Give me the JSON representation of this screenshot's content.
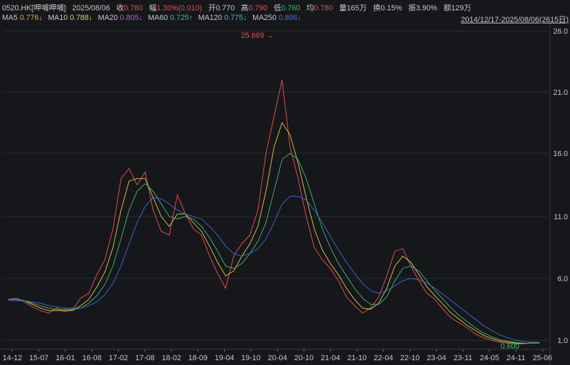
{
  "header": {
    "code": "0520.HK[呷哺呷哺]",
    "date": "2025/08/06",
    "close_label": "收",
    "close": "0.780",
    "change_label": "幅",
    "change": "1.30%(0.010)",
    "open_label": "开",
    "open": "0.770",
    "high_label": "高",
    "high": "0.790",
    "low_label": "低",
    "low": "0.760",
    "avg_label": "均",
    "avg": "0.780",
    "vol_label": "量",
    "vol": "165万",
    "turn_label": "换",
    "turn": "0.15%",
    "amp_label": "振",
    "amp": "3.90%",
    "amt_label": "额",
    "amt": "129万"
  },
  "ma_legend": [
    {
      "name": "MA5",
      "value": "0.776↓",
      "color": "#e8a035"
    },
    {
      "name": "MA10",
      "value": "0.788↓",
      "color": "#e8d24a"
    },
    {
      "name": "MA20",
      "value": "0.805↓",
      "color": "#c45ad8"
    },
    {
      "name": "MA60",
      "value": "0.725↑",
      "color": "#3ec27a"
    },
    {
      "name": "MA120",
      "value": "0.775↓",
      "color": "#3fb7e0"
    },
    {
      "name": "MA250",
      "value": "0.896↓",
      "color": "#3f6fe0"
    }
  ],
  "range_label": "2014/12/17-2025/08/06(2615日)",
  "chart_data": {
    "type": "line",
    "log_scale": true,
    "y_ticks": [
      "26.0",
      "21.0",
      "16.0",
      "11.0",
      "6.0",
      "1.0"
    ],
    "x_ticks": [
      "14-12",
      "15-07",
      "16-01",
      "16-08",
      "17-02",
      "17-08",
      "18-02",
      "18-09",
      "19-04",
      "19-10",
      "20-04",
      "20-10",
      "21-04",
      "21-10",
      "22-04",
      "22-10",
      "23-04",
      "23-11",
      "24-05",
      "24-11",
      "25-06"
    ],
    "annotations": [
      {
        "label": "25.669",
        "value": 25.669
      },
      {
        "label": "0.600",
        "value": 0.6
      }
    ],
    "series": [
      {
        "values": [
          4.3,
          4.4,
          4.1,
          3.7,
          3.4,
          3.2,
          3.6,
          3.3,
          3.5,
          4.4,
          4.8,
          6.3,
          7.5,
          10.0,
          14.0,
          14.8,
          13.5,
          14.5,
          11.5,
          9.8,
          9.5,
          12.7,
          11.2,
          10.0,
          9.5,
          7.8,
          6.4,
          5.2,
          7.8,
          8.8,
          9.5,
          11.5,
          16.0,
          19.0,
          22.0,
          16.5,
          14.0,
          11.0,
          8.5,
          7.5,
          6.8,
          5.8,
          4.5,
          3.8,
          3.2,
          3.6,
          4.5,
          6.2,
          8.2,
          8.4,
          7.0,
          5.8,
          4.8,
          4.3,
          3.5,
          2.8,
          2.4,
          2.0,
          1.5,
          1.2,
          1.0,
          0.85,
          0.75,
          0.7,
          0.72,
          0.78,
          0.78
        ]
      },
      {
        "values": [
          4.3,
          4.3,
          4.2,
          3.9,
          3.6,
          3.4,
          3.4,
          3.4,
          3.4,
          3.8,
          4.3,
          5.3,
          6.5,
          8.5,
          11.5,
          13.8,
          14.0,
          14.0,
          12.5,
          11.0,
          10.2,
          11.2,
          11.2,
          10.5,
          9.8,
          8.6,
          7.3,
          6.2,
          6.6,
          7.8,
          8.8,
          10.2,
          13.0,
          16.5,
          18.5,
          17.5,
          15.2,
          12.5,
          10.0,
          8.3,
          7.2,
          6.3,
          5.2,
          4.3,
          3.6,
          3.5,
          4.0,
          5.2,
          7.0,
          7.8,
          7.3,
          6.3,
          5.3,
          4.6,
          3.9,
          3.2,
          2.7,
          2.2,
          1.8,
          1.4,
          1.15,
          0.95,
          0.85,
          0.78,
          0.74,
          0.77,
          0.79
        ]
      },
      {
        "values": [
          4.3,
          4.3,
          4.2,
          4.0,
          3.8,
          3.6,
          3.5,
          3.5,
          3.5,
          3.6,
          4.0,
          4.6,
          5.5,
          7.0,
          9.2,
          11.5,
          13.0,
          13.6,
          13.0,
          12.0,
          11.0,
          10.8,
          11.0,
          10.8,
          10.2,
          9.3,
          8.2,
          7.0,
          6.8,
          7.2,
          8.0,
          9.0,
          10.5,
          13.0,
          15.5,
          16.0,
          15.5,
          14.0,
          12.0,
          10.0,
          8.5,
          7.2,
          6.2,
          5.2,
          4.4,
          3.9,
          3.9,
          4.5,
          5.8,
          6.8,
          7.0,
          6.6,
          5.8,
          5.0,
          4.3,
          3.6,
          3.0,
          2.5,
          2.0,
          1.6,
          1.3,
          1.05,
          0.92,
          0.82,
          0.76,
          0.76,
          0.77
        ]
      },
      {
        "values": [
          4.2,
          4.2,
          4.2,
          4.1,
          4.0,
          3.8,
          3.7,
          3.6,
          3.6,
          3.6,
          3.8,
          4.1,
          4.7,
          5.6,
          7.0,
          8.8,
          10.5,
          11.8,
          12.5,
          12.4,
          12.0,
          11.5,
          11.2,
          11.0,
          10.8,
          10.2,
          9.5,
          8.6,
          8.0,
          7.8,
          8.0,
          8.4,
          9.2,
          10.5,
          12.0,
          12.6,
          12.6,
          12.3,
          11.5,
          10.5,
          9.4,
          8.3,
          7.3,
          6.4,
          5.6,
          5.0,
          4.8,
          5.0,
          5.4,
          5.8,
          6.0,
          5.9,
          5.6,
          5.2,
          4.7,
          4.2,
          3.7,
          3.2,
          2.7,
          2.2,
          1.8,
          1.45,
          1.2,
          1.0,
          0.9,
          0.85,
          0.82
        ]
      }
    ]
  }
}
